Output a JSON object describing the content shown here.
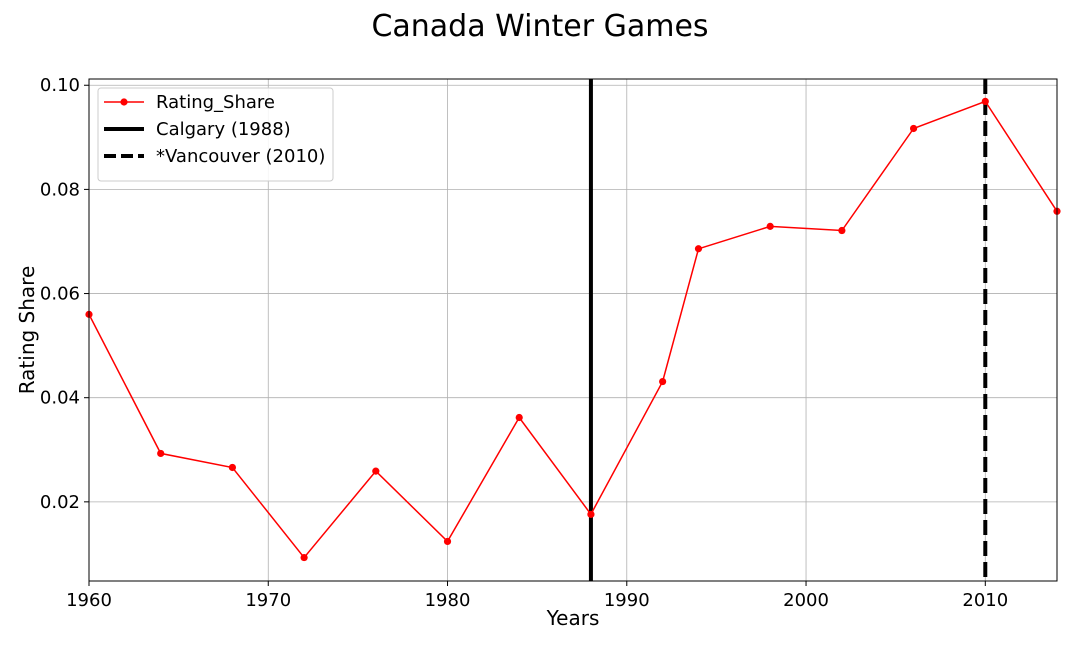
{
  "chart_data": {
    "type": "line",
    "title": "Canada Winter Games",
    "xlabel": "Years",
    "ylabel": "Rating Share",
    "xlim": [
      1960,
      2014
    ],
    "ylim": [
      0.0048,
      0.1012
    ],
    "xticks": [
      1960,
      1970,
      1980,
      1990,
      2000,
      2010
    ],
    "yticks": [
      0.02,
      0.04,
      0.06,
      0.08,
      0.1
    ],
    "xtick_labels": [
      "1960",
      "1970",
      "1980",
      "1990",
      "2000",
      "2010"
    ],
    "ytick_labels": [
      "0.02",
      "0.04",
      "0.06",
      "0.08",
      "0.10"
    ],
    "grid": true,
    "legend_position": "top-left",
    "series": [
      {
        "name": "Rating_Share",
        "color": "#ff0000",
        "marker": "circle",
        "x": [
          1960,
          1964,
          1968,
          1972,
          1976,
          1980,
          1984,
          1988,
          1992,
          1994,
          1998,
          2002,
          2006,
          2010,
          2014
        ],
        "y": [
          0.056,
          0.0293,
          0.0266,
          0.0093,
          0.0259,
          0.0124,
          0.0362,
          0.0176,
          0.0431,
          0.0686,
          0.0729,
          0.0721,
          0.0917,
          0.0969,
          0.0758
        ]
      }
    ],
    "vlines": [
      {
        "name": "Calgary (1988)",
        "x": 1988,
        "style": "solid",
        "color": "#000000"
      },
      {
        "name": "*Vancouver (2010)",
        "x": 2010,
        "style": "dashed",
        "color": "#000000"
      }
    ]
  }
}
